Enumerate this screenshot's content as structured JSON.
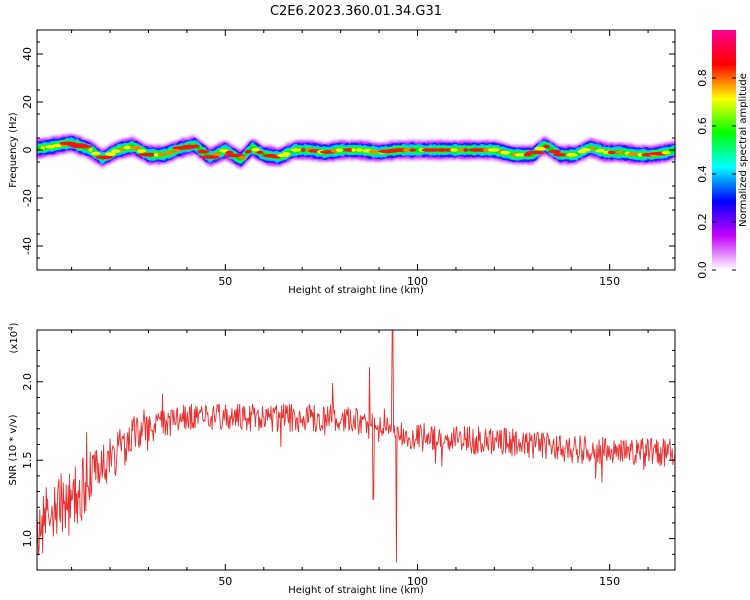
{
  "title": "C2E6.2023.360.01.34.G31",
  "chart_data": [
    {
      "type": "heatmap",
      "xlabel": "Height of straight line (km)",
      "ylabel": "Frequency (Hz)",
      "xlim": [
        1,
        167
      ],
      "ylim": [
        -50,
        50
      ],
      "xticks": [
        50,
        100,
        150
      ],
      "yticks": [
        -40,
        -20,
        0,
        20,
        40
      ],
      "colorbar": {
        "label": "Normalized spectral amplitude",
        "range": [
          0.0,
          1.0
        ],
        "ticks": [
          0.0,
          0.2,
          0.4,
          0.6,
          0.8
        ],
        "colors": [
          "#ffffff",
          "#c400ff",
          "#0000ff",
          "#00ffff",
          "#00ff00",
          "#ffff00",
          "#ff0000",
          "#ff0090"
        ]
      },
      "ridge": {
        "x": [
          1,
          5,
          10,
          15,
          18,
          22,
          26,
          30,
          34,
          38,
          42,
          46,
          50,
          54,
          57,
          60,
          64,
          68,
          72,
          76,
          80,
          85,
          90,
          95,
          100,
          105,
          110,
          115,
          120,
          125,
          130,
          133,
          137,
          141,
          145,
          149,
          153,
          157,
          161,
          165,
          167
        ],
        "freq": [
          0.5,
          1.5,
          3,
          0,
          -3.5,
          0,
          1.5,
          -2,
          -2,
          0.5,
          2,
          -3,
          0,
          -4,
          1,
          -2,
          -3,
          0,
          0,
          -1,
          0,
          0,
          -1,
          0,
          0,
          0,
          0,
          0,
          0,
          -2,
          -2,
          2,
          -2,
          -2,
          1,
          -1,
          -1,
          -2,
          -2,
          -1,
          0
        ]
      }
    },
    {
      "type": "line",
      "xlabel": "Height of straight line (km)",
      "ylabel": "SNR (10 * v/v)",
      "yscale_label": "(x10",
      "yscale_exp": "4",
      "yscale_close": ")",
      "xlim": [
        1,
        167
      ],
      "ylim": [
        0.8,
        2.33
      ],
      "xticks": [
        50,
        100,
        150
      ],
      "yticks": [
        1.0,
        1.5,
        2.0
      ],
      "color": "#e83030",
      "trend": {
        "x": [
          1,
          5,
          10,
          15,
          20,
          25,
          30,
          35,
          40,
          50,
          60,
          70,
          80,
          85,
          90,
          95,
          100,
          110,
          120,
          130,
          140,
          150,
          160,
          167
        ],
        "y": [
          1.08,
          1.15,
          1.25,
          1.4,
          1.5,
          1.62,
          1.7,
          1.74,
          1.77,
          1.77,
          1.77,
          1.77,
          1.77,
          1.74,
          1.7,
          1.67,
          1.65,
          1.63,
          1.62,
          1.6,
          1.57,
          1.56,
          1.55,
          1.55
        ]
      },
      "spikes": [
        {
          "x": 87.5,
          "y": 2.09
        },
        {
          "x": 88.5,
          "y": 1.25
        },
        {
          "x": 93.5,
          "y": 2.33
        },
        {
          "x": 94.5,
          "y": 0.85
        }
      ]
    }
  ]
}
